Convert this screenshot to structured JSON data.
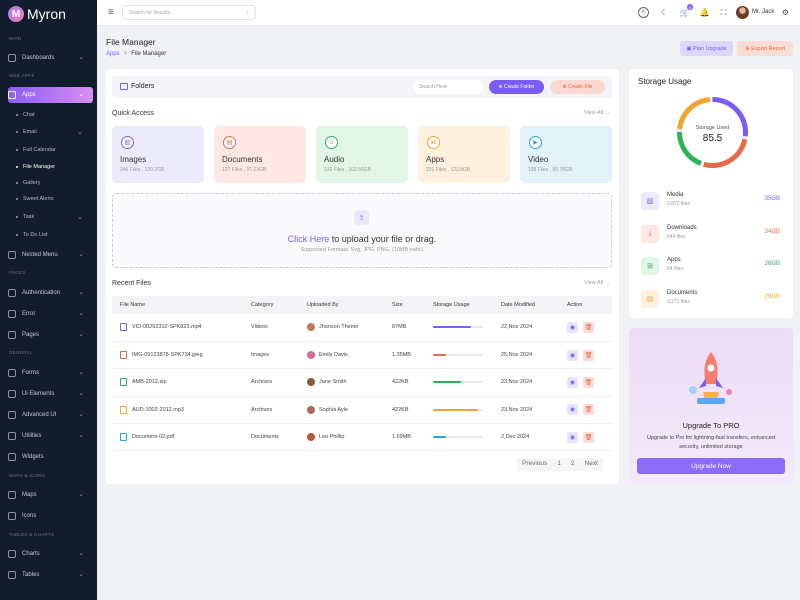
{
  "app": {
    "name": "Myron",
    "logo_letter": "M"
  },
  "sidebar": {
    "sections": [
      "MAIN",
      "WEB APPS",
      "PAGES",
      "GENERAL",
      "MAPS & ICONS",
      "TABLES & CHARTS"
    ],
    "items": {
      "dashboards": "Dashboards",
      "apps": "Apps",
      "chat": "Chat",
      "email": "Email",
      "full_calendar": "Full Calendar",
      "file_manager": "File Manager",
      "gallery": "Gallery",
      "sweet_alerts": "Sweet Alerts",
      "task": "Task",
      "todo": "To Do List",
      "nested_menu": "Nested Menu",
      "authentication": "Authentication",
      "error": "Error",
      "pages": "Pages",
      "forms": "Forms",
      "ui_elements": "Ui Elements",
      "advanced_ui": "Advanced UI",
      "utilities": "Utilities",
      "widgets": "Widgets",
      "maps": "Maps",
      "icons": "Icons",
      "charts": "Charts",
      "tables": "Tables"
    }
  },
  "topbar": {
    "search_placeholder": "Search for Results...",
    "cart_count": "5",
    "user_name": "Mr. Jack"
  },
  "page": {
    "title": "File Manager",
    "breadcrumb_root": "Apps",
    "breadcrumb_sep": ">",
    "breadcrumb_current": "File Manager",
    "plan_upgrade": "Plan Upgrade",
    "export_report": "Export Report"
  },
  "folders": {
    "title": "Folders",
    "search_placeholder": "Search Here",
    "create_folder": "Create Folder",
    "create_file": "Create File"
  },
  "quick_access": {
    "title": "Quick Access",
    "view_all": "View All →",
    "items": [
      {
        "name": "Images",
        "detail": "246 Files , 120.2GB",
        "bg": "#ecebfb",
        "accent": "#7b5cf5"
      },
      {
        "name": "Documents",
        "detail": "127 Files , 97.23GB",
        "bg": "#fde8e3",
        "accent": "#e46a4a"
      },
      {
        "name": "Audio",
        "detail": "132 Files , 102.56GB",
        "bg": "#e2f6e8",
        "accent": "#2fb15a"
      },
      {
        "name": "Apps",
        "detail": "231 Files , 123.8GB",
        "bg": "#fdf0dd",
        "accent": "#f1a52c"
      },
      {
        "name": "Video",
        "detail": "199 Files , 56.78GB",
        "bg": "#e2f2f9",
        "accent": "#2ba5d6"
      }
    ]
  },
  "upload": {
    "click": "Click Here",
    "text": " to upload your file or drag.",
    "formats": "Supported Formats: Svg, JPG, PNG, (10MB eahc)"
  },
  "recent": {
    "title": "Recent Files",
    "view_all": "View All →",
    "headers": [
      "File Name",
      "Category",
      "Uploaded By",
      "Size",
      "Storage Usage",
      "Date Modified",
      "Action"
    ],
    "rows": [
      {
        "file": "VID-00292312-SPK823.mp4",
        "category": "Videos",
        "user": "Jhonson Theme",
        "size": "87MB",
        "usage": 0.75,
        "date": "22,Nov 2024",
        "color": "#7b5cf5",
        "avatar": "#c8745a"
      },
      {
        "file": "IMG-09123878-SPK734.jpeg",
        "category": "Images",
        "user": "Emily Davis",
        "size": "1.35MB",
        "usage": 0.25,
        "date": "25,Nov 2024",
        "color": "#e46a4a",
        "avatar": "#d26a9a"
      },
      {
        "file": "AMB-2012.zip",
        "category": "Archives",
        "user": "Jane Smith",
        "size": "422KB",
        "usage": 0.55,
        "date": "23,Nov 2024",
        "color": "#2fb15a",
        "avatar": "#8a5a3a"
      },
      {
        "file": "AUD-1002-2012.mp3",
        "category": "Archives",
        "user": "Sophia Ayle",
        "size": "422KB",
        "usage": 0.9,
        "date": "23,Nov 2024",
        "color": "#f1a52c",
        "avatar": "#a86b5a"
      },
      {
        "file": "Document-02.pdf",
        "category": "Documents",
        "user": "Leo Phillip",
        "size": "1.69MB",
        "usage": 0.25,
        "date": "2,Dec 2024",
        "color": "#2ba5d6",
        "avatar": "#b35a3a"
      }
    ]
  },
  "pagination": {
    "prev": "Previous",
    "p1": "1",
    "p2": "2",
    "next": "Next"
  },
  "storage": {
    "title": "Storage Usage",
    "label": "Storage Used",
    "value": "85.5",
    "items": [
      {
        "name": "Media",
        "count": "2,872 files",
        "size": "35GB",
        "color": "#7b5cf5",
        "bg": "#ecebfb"
      },
      {
        "name": "Downloads",
        "count": "644 files",
        "size": "34GB",
        "color": "#e46a4a",
        "bg": "#fde8e3"
      },
      {
        "name": "Apps",
        "count": "64 files",
        "size": "26GB",
        "color": "#2fb15a",
        "bg": "#e2f6e8"
      },
      {
        "name": "Documents",
        "count": "3,271 files",
        "size": "29GB",
        "color": "#f1a52c",
        "bg": "#fdf0dd"
      }
    ]
  },
  "pro": {
    "title": "Upgrade To PRO",
    "desc": "Upgrade to Pro for lightning-fast transfers, enhanced security, unlimited storage",
    "button": "Upgrade Now"
  }
}
